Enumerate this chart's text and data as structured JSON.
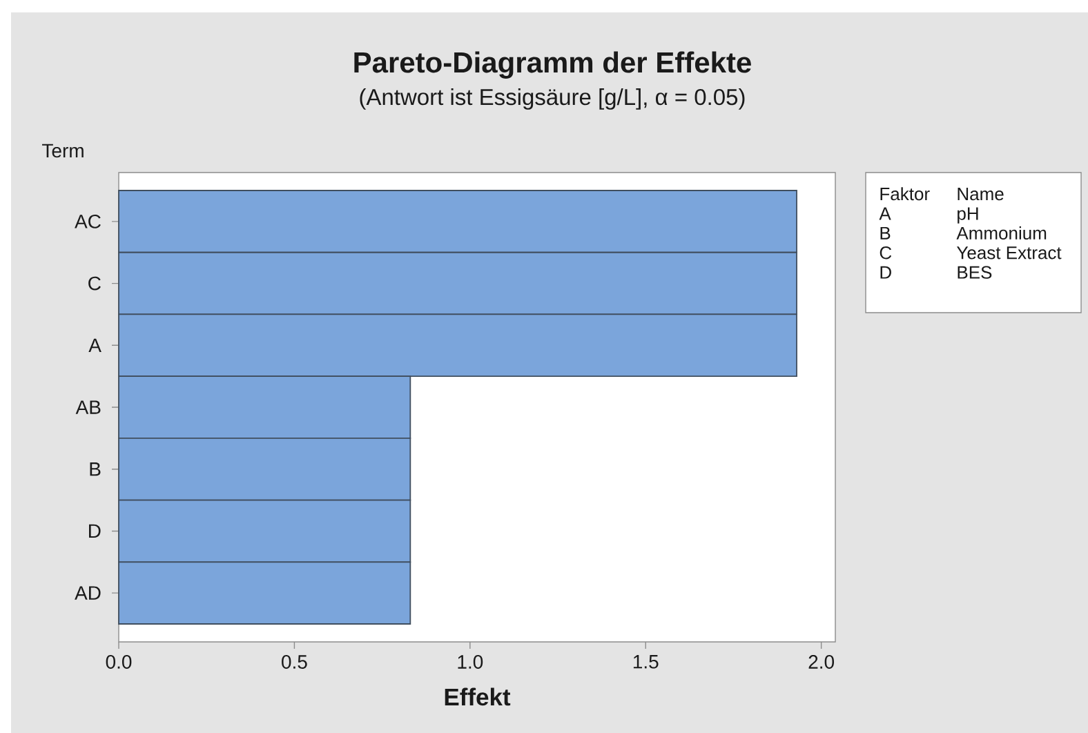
{
  "chart_data": {
    "type": "bar",
    "orientation": "horizontal",
    "title": "Pareto-Diagramm der Effekte",
    "subtitle": "(Antwort ist Essigsäure [g/L], α = 0.05)",
    "xlabel": "Effekt",
    "ylabel": "Term",
    "categories": [
      "AC",
      "C",
      "A",
      "AB",
      "B",
      "D",
      "AD"
    ],
    "values": [
      1.93,
      1.93,
      1.93,
      0.83,
      0.83,
      0.83,
      0.83
    ],
    "color": "#7ba5db",
    "xlim": [
      0,
      2.04
    ],
    "xticks": [
      {
        "value": 0,
        "label": "0.0"
      },
      0.5,
      {
        "value": 1,
        "label": "1.0"
      },
      1.5,
      {
        "value": 2,
        "label": "2.0"
      }
    ],
    "annotations": [
      "Faktor",
      "Name",
      "A",
      "pH",
      "B",
      "Ammonium",
      "C",
      "Yeast Extract",
      "D",
      "BES"
    ]
  }
}
